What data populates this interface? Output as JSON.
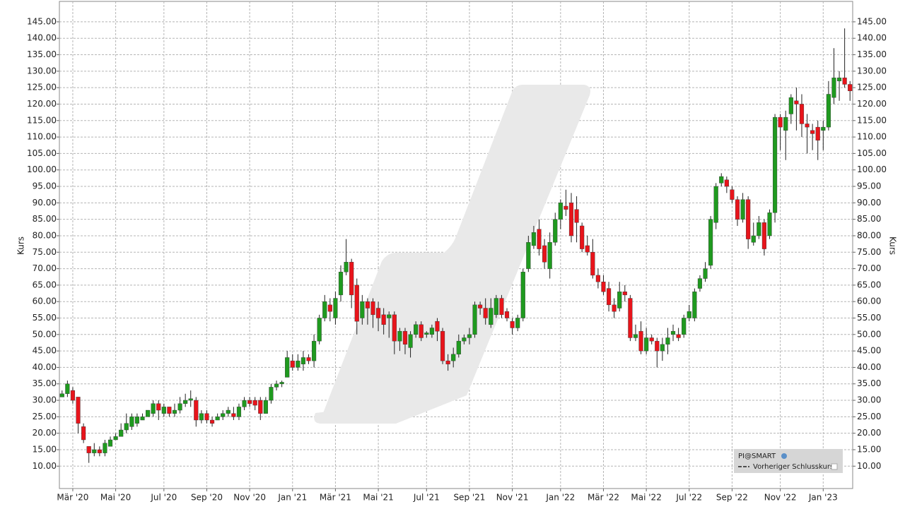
{
  "chart_data": {
    "type": "candlestick",
    "ylabel": "Kurs",
    "legend": [
      "PI@SMART",
      "Vorheriger Schlusskurs"
    ],
    "up_color": "#1f9a1f",
    "down_color": "#e8141b",
    "grid": true,
    "ylim": [
      3.2,
      151.2
    ],
    "yticks": [
      {
        "value": 10,
        "label": "10.00"
      },
      {
        "value": 15,
        "label": "15.00"
      },
      {
        "value": 20,
        "label": "20.00"
      },
      {
        "value": 25,
        "label": "25.00"
      },
      {
        "value": 30,
        "label": "30.00"
      },
      {
        "value": 35,
        "label": "35.00"
      },
      {
        "value": 40,
        "label": "40.00"
      },
      {
        "value": 45,
        "label": "45.00"
      },
      {
        "value": 50,
        "label": "50.00"
      },
      {
        "value": 55,
        "label": "55.00"
      },
      {
        "value": 60,
        "label": "60.00"
      },
      {
        "value": 65,
        "label": "65.00"
      },
      {
        "value": 70,
        "label": "70.00"
      },
      {
        "value": 75,
        "label": "75.00"
      },
      {
        "value": 80,
        "label": "80.00"
      },
      {
        "value": 85,
        "label": "85.00"
      },
      {
        "value": 90,
        "label": "90.00"
      },
      {
        "value": 95,
        "label": "95.00"
      },
      {
        "value": 100,
        "label": "100.00"
      },
      {
        "value": 105,
        "label": "105.00"
      },
      {
        "value": 110,
        "label": "110.00"
      },
      {
        "value": 115,
        "label": "115.00"
      },
      {
        "value": 120,
        "label": "120.00"
      },
      {
        "value": 125,
        "label": "125.00"
      },
      {
        "value": 130,
        "label": "130.00"
      },
      {
        "value": 135,
        "label": "135.00"
      },
      {
        "value": 140,
        "label": "140.00"
      },
      {
        "value": 145,
        "label": "145.00"
      }
    ],
    "categories": [
      null,
      null,
      "Mär '20",
      null,
      null,
      null,
      null,
      null,
      null,
      null,
      "Mai '20",
      null,
      null,
      null,
      null,
      null,
      null,
      null,
      null,
      "Jul '20",
      null,
      null,
      null,
      null,
      null,
      null,
      null,
      "Sep '20",
      null,
      null,
      null,
      null,
      null,
      null,
      null,
      "Nov '20",
      null,
      null,
      null,
      null,
      null,
      null,
      null,
      "Jan '21",
      null,
      null,
      null,
      null,
      null,
      null,
      null,
      "Mär '21",
      null,
      null,
      null,
      null,
      null,
      null,
      null,
      "Mai '21",
      null,
      null,
      null,
      null,
      null,
      null,
      null,
      null,
      "Jul '21",
      null,
      null,
      null,
      null,
      null,
      null,
      null,
      "Sep '21",
      null,
      null,
      null,
      null,
      null,
      null,
      null,
      "Nov '21",
      null,
      null,
      null,
      null,
      null,
      null,
      null,
      null,
      "Jan '22",
      null,
      null,
      null,
      null,
      null,
      null,
      null,
      "Mär '22",
      null,
      null,
      null,
      null,
      null,
      null,
      null,
      "Mai '22",
      null,
      null,
      null,
      null,
      null,
      null,
      null,
      "Jul '22",
      null,
      null,
      null,
      null,
      null,
      null,
      null,
      "Sep '22",
      null,
      null,
      null,
      null,
      null,
      null,
      null,
      null,
      "Nov '22",
      null,
      null,
      null,
      null,
      null,
      null,
      null,
      "Jan '23",
      null,
      null,
      null,
      null,
      null
    ],
    "open": [
      31,
      32,
      33,
      31,
      22,
      16,
      14,
      15,
      14,
      16,
      18,
      19,
      21,
      22,
      23,
      24,
      25,
      26,
      29,
      26,
      28,
      26,
      27,
      29,
      30,
      30,
      24,
      26,
      24,
      24,
      25,
      26,
      26,
      25,
      28,
      30,
      30,
      30,
      26,
      30,
      34,
      35,
      37,
      42,
      40,
      41,
      43,
      42,
      48,
      55,
      59,
      55,
      62,
      69,
      72,
      65,
      55,
      60,
      60,
      58,
      56,
      55,
      56,
      48,
      51,
      46,
      50,
      53,
      50,
      50,
      54,
      51,
      42,
      42,
      44,
      48,
      49,
      50,
      59,
      58,
      53,
      56,
      61,
      57,
      54,
      52,
      55,
      70,
      77,
      82,
      77,
      70,
      78,
      85,
      89,
      90,
      88,
      83,
      77,
      75,
      68,
      66,
      64,
      59,
      58,
      63,
      61,
      49,
      51,
      45,
      49,
      48,
      45,
      47,
      50,
      50,
      50,
      55,
      55,
      64,
      67,
      71,
      84,
      96,
      97,
      94,
      91,
      85,
      91,
      78,
      80,
      84,
      80,
      87,
      116,
      112,
      117,
      121,
      120,
      114,
      112,
      113,
      112,
      113,
      122,
      127,
      128,
      126
    ],
    "high": [
      33,
      36,
      34,
      31,
      23,
      16,
      17,
      16,
      18,
      19,
      20,
      23,
      26,
      26,
      26,
      26,
      27,
      30,
      30,
      29,
      28,
      29,
      31,
      32,
      33,
      31,
      27,
      27,
      25,
      26,
      27,
      28,
      28,
      29,
      31,
      31,
      31,
      31,
      31,
      35,
      36,
      36,
      45,
      44,
      44,
      45,
      44,
      50,
      56,
      62,
      61,
      63,
      71,
      79,
      73,
      67,
      62,
      61,
      61,
      60,
      58,
      57,
      57,
      52,
      52,
      51,
      54,
      54,
      51,
      53,
      55,
      52,
      44,
      46,
      50,
      50,
      52,
      60,
      60,
      61,
      61,
      62,
      62,
      58,
      55,
      56,
      70,
      80,
      83,
      85,
      79,
      81,
      87,
      91,
      94,
      93,
      92,
      84,
      80,
      79,
      70,
      68,
      66,
      61,
      66,
      65,
      62,
      53,
      54,
      52,
      50,
      49,
      49,
      52,
      53,
      52,
      56,
      59,
      64,
      68,
      72,
      86,
      96,
      99,
      98,
      95,
      92,
      93,
      92,
      84,
      86,
      85,
      88,
      117,
      117,
      118,
      123,
      125,
      123,
      117,
      114,
      115,
      115,
      127,
      137,
      130,
      143,
      127
    ],
    "low": [
      31,
      31,
      29,
      20,
      17,
      11,
      13,
      13,
      13,
      16,
      18,
      19,
      20,
      21,
      22,
      24,
      25,
      25,
      24,
      25,
      25,
      25,
      26,
      28,
      28,
      22,
      23,
      23,
      22,
      24,
      24,
      25,
      24,
      24,
      27,
      28,
      27,
      24,
      26,
      29,
      33,
      34,
      37,
      39,
      39,
      39,
      41,
      40,
      47,
      54,
      54,
      53,
      60,
      68,
      58,
      50,
      53,
      53,
      52,
      51,
      50,
      49,
      44,
      45,
      44,
      43,
      49,
      48,
      49,
      49,
      48,
      41,
      39,
      40,
      43,
      47,
      47,
      49,
      56,
      53,
      52,
      55,
      55,
      54,
      50,
      51,
      54,
      69,
      76,
      74,
      70,
      67,
      77,
      82,
      86,
      78,
      78,
      75,
      74,
      67,
      64,
      62,
      57,
      55,
      57,
      60,
      48,
      48,
      44,
      44,
      47,
      40,
      42,
      44,
      48,
      48,
      49,
      54,
      54,
      63,
      66,
      70,
      82,
      95,
      93,
      90,
      83,
      84,
      76,
      77,
      79,
      74,
      79,
      84,
      106,
      103,
      114,
      112,
      110,
      105,
      106,
      103,
      106,
      112,
      120,
      121,
      125,
      121
    ],
    "close": [
      32,
      35,
      30,
      23,
      18,
      14,
      15,
      14,
      17,
      18,
      19,
      21,
      23,
      25,
      25,
      25,
      27,
      29,
      27,
      28,
      26,
      27,
      29,
      30,
      30.5,
      24,
      26,
      24,
      23,
      25,
      26,
      27,
      25,
      28,
      30,
      29,
      28.5,
      26,
      30,
      34,
      35,
      35.5,
      43,
      40,
      42,
      43,
      42,
      48,
      55,
      60,
      57,
      61,
      69,
      72,
      62,
      54,
      60,
      58,
      56,
      55,
      53,
      56,
      48,
      51,
      47,
      50,
      53,
      49,
      50.5,
      52,
      51,
      42,
      41,
      44,
      48,
      49,
      50,
      59,
      58,
      55,
      58,
      61,
      56,
      55,
      52,
      55,
      69,
      78,
      81,
      76,
      72,
      78,
      85,
      90,
      88,
      80,
      84,
      76,
      75,
      68,
      66,
      63,
      59,
      57,
      63,
      62,
      49,
      50,
      45,
      49,
      48,
      45,
      47,
      49,
      51,
      49,
      55,
      57,
      63,
      67,
      70,
      85,
      95,
      98,
      95,
      91,
      85,
      91,
      79,
      80,
      84,
      76,
      87,
      116,
      113,
      116,
      122,
      120,
      114,
      113,
      111,
      109,
      113,
      123,
      128,
      128,
      126,
      124
    ]
  }
}
